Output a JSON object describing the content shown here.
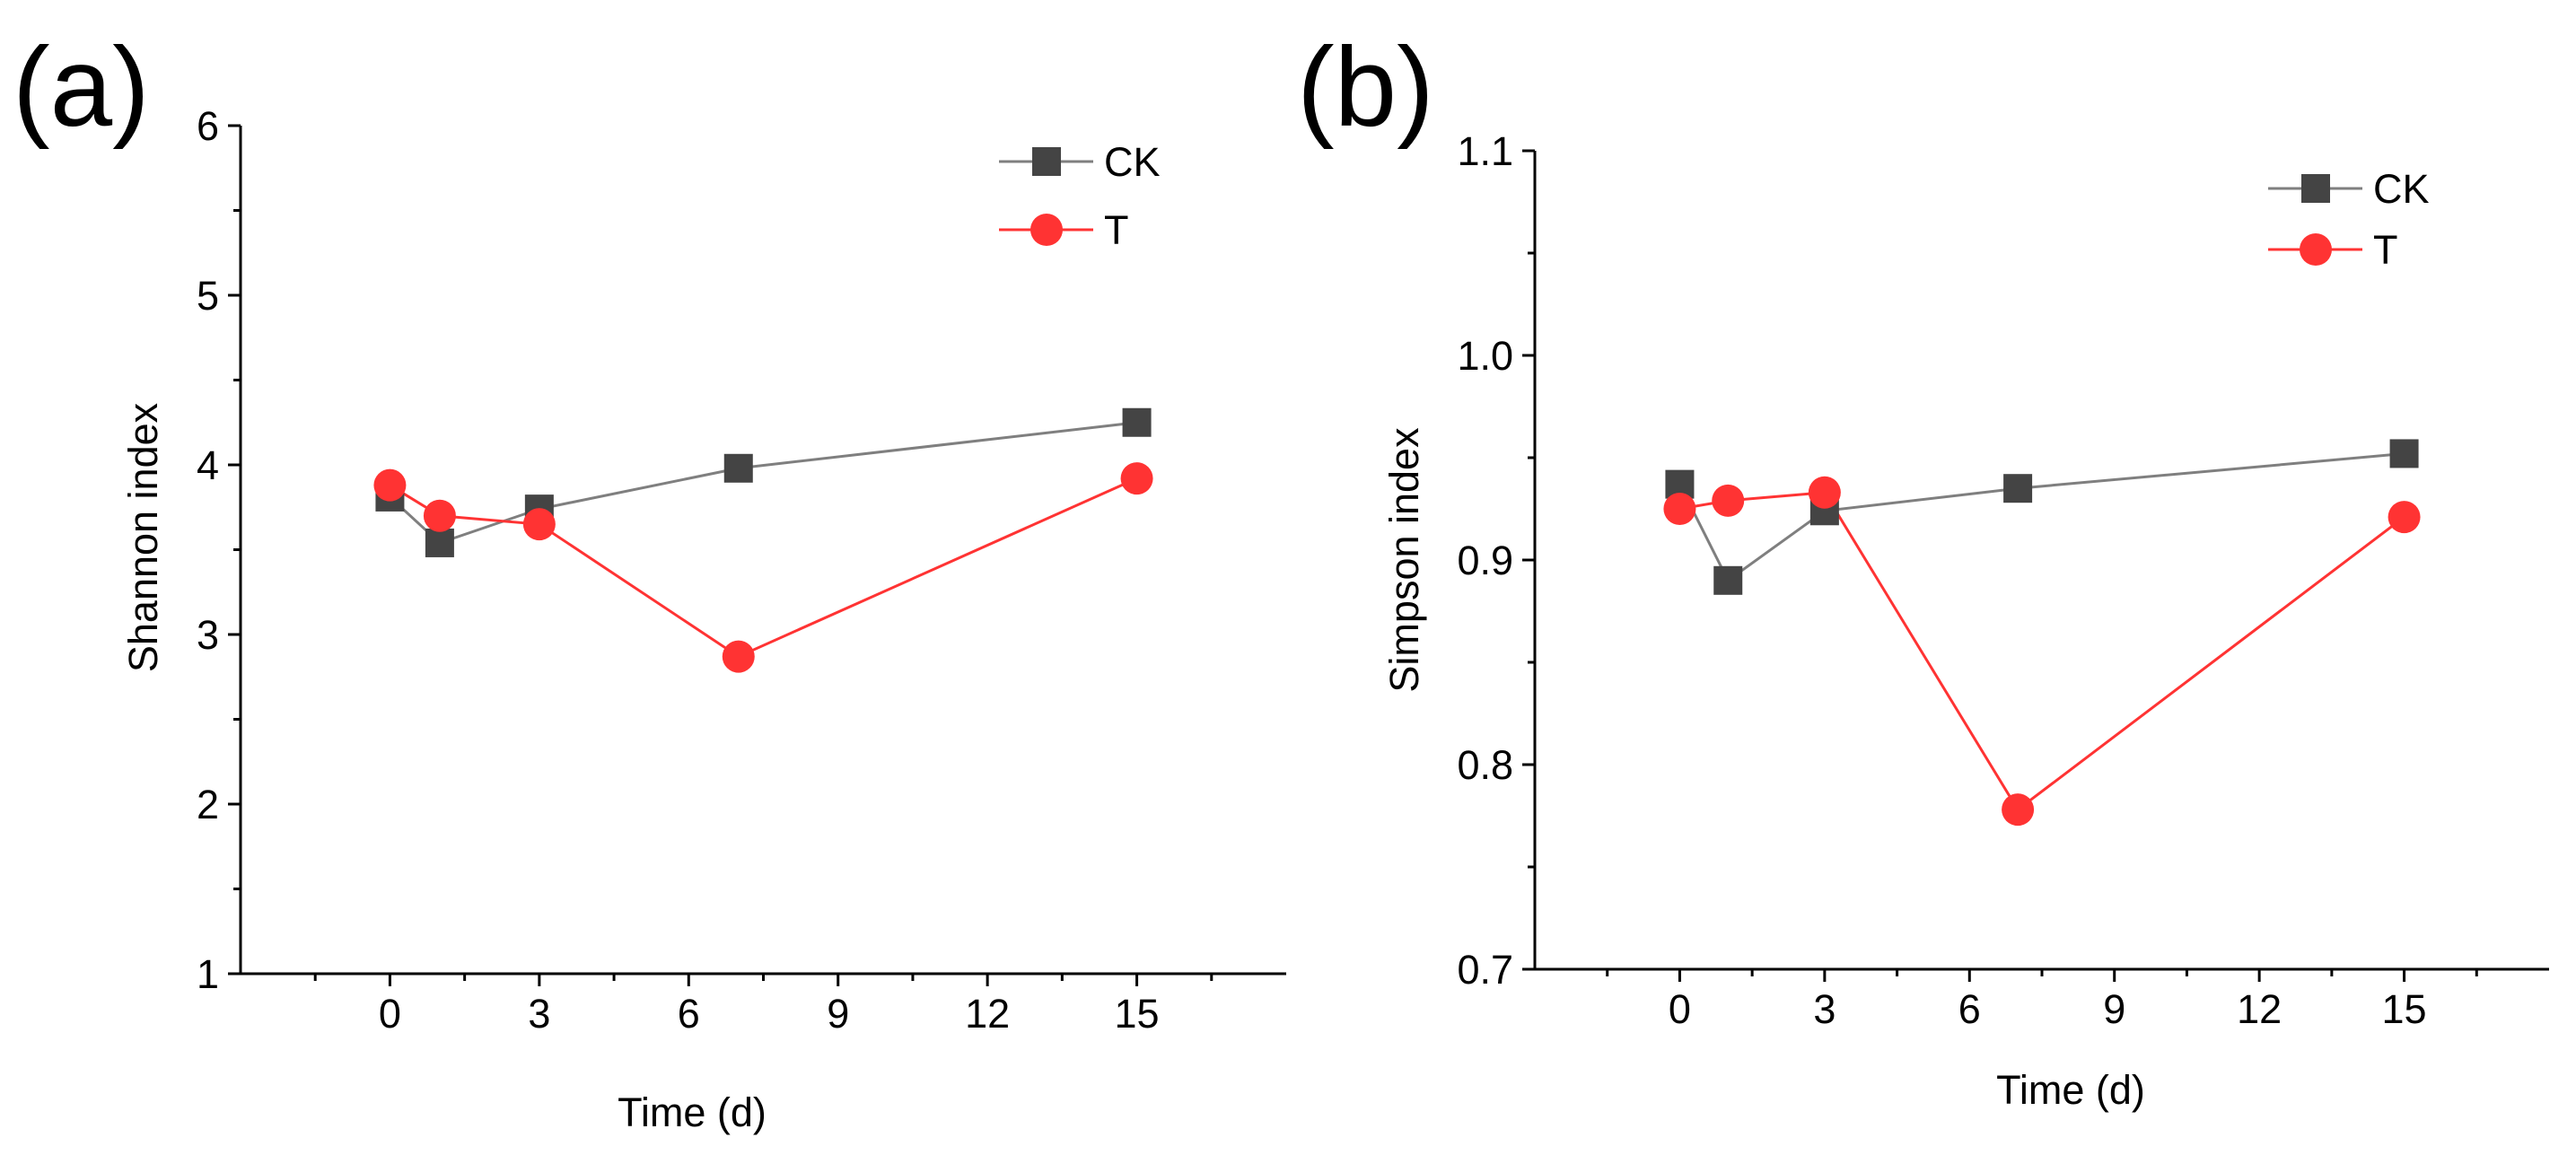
{
  "chart_data": [
    {
      "type": "line",
      "panel_label": "(a)",
      "title": "",
      "xlabel": "Time (d)",
      "ylabel": "Shannon index",
      "xlim": [
        -3,
        18
      ],
      "ylim": [
        1,
        6
      ],
      "xticks": [
        0,
        3,
        6,
        9,
        12,
        15
      ],
      "yticks": [
        1,
        2,
        3,
        4,
        5,
        6
      ],
      "grid": false,
      "legend_position": "top-right",
      "x": [
        0,
        1,
        3,
        7,
        15
      ],
      "series": [
        {
          "name": "CK",
          "color": "#444444",
          "line_color": "#7f7f7f",
          "marker": "square",
          "values": [
            3.81,
            3.54,
            3.74,
            3.98,
            4.25
          ]
        },
        {
          "name": "T",
          "color": "#ff3333",
          "line_color": "#ff3333",
          "marker": "circle",
          "values": [
            3.88,
            3.7,
            3.65,
            2.87,
            3.92
          ]
        }
      ]
    },
    {
      "type": "line",
      "panel_label": "(b)",
      "title": "",
      "xlabel": "Time (d)",
      "ylabel": "Simpson index",
      "xlim": [
        -3,
        18
      ],
      "ylim": [
        0.7,
        1.1
      ],
      "xticks": [
        0,
        3,
        6,
        9,
        12,
        15
      ],
      "yticks": [
        0.7,
        0.8,
        0.9,
        1.0,
        1.1
      ],
      "ytick_labels": [
        "0.7",
        "0.8",
        "0.9",
        "1.0",
        "1.1"
      ],
      "grid": false,
      "legend_position": "top-right",
      "x": [
        0,
        1,
        3,
        7,
        15
      ],
      "series": [
        {
          "name": "CK",
          "color": "#444444",
          "line_color": "#7f7f7f",
          "marker": "square",
          "values": [
            0.937,
            0.89,
            0.924,
            0.935,
            0.952
          ]
        },
        {
          "name": "T",
          "color": "#ff3333",
          "line_color": "#ff3333",
          "marker": "circle",
          "values": [
            0.925,
            0.929,
            0.933,
            0.778,
            0.921
          ]
        }
      ]
    }
  ]
}
